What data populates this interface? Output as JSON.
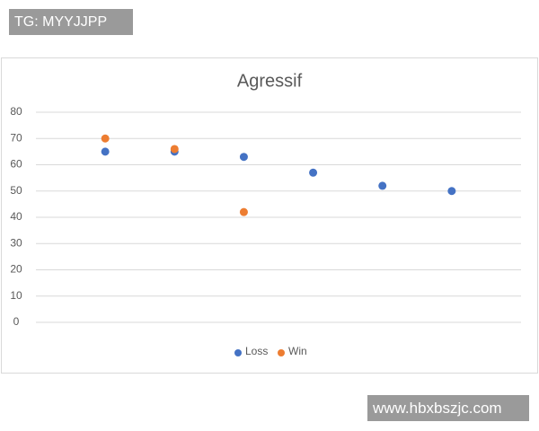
{
  "top_tag": "TG: MYYJJPP",
  "bottom_tag": "www.hbxbszjc.com",
  "chart_data": {
    "type": "scatter",
    "title": "Agressif",
    "x": [
      1,
      2,
      3,
      4,
      5,
      6
    ],
    "xlim": [
      0,
      7
    ],
    "ylim": [
      0,
      80
    ],
    "yticks": [
      0,
      10,
      20,
      30,
      40,
      50,
      60,
      70,
      80
    ],
    "grid": true,
    "legend": "bottom",
    "series": [
      {
        "name": "Loss",
        "color": "#4472c4",
        "values": [
          65,
          65,
          63,
          57,
          52,
          50
        ]
      },
      {
        "name": "Win",
        "color": "#ed7d31",
        "values": [
          70,
          66,
          42,
          null,
          null,
          null
        ]
      }
    ]
  }
}
